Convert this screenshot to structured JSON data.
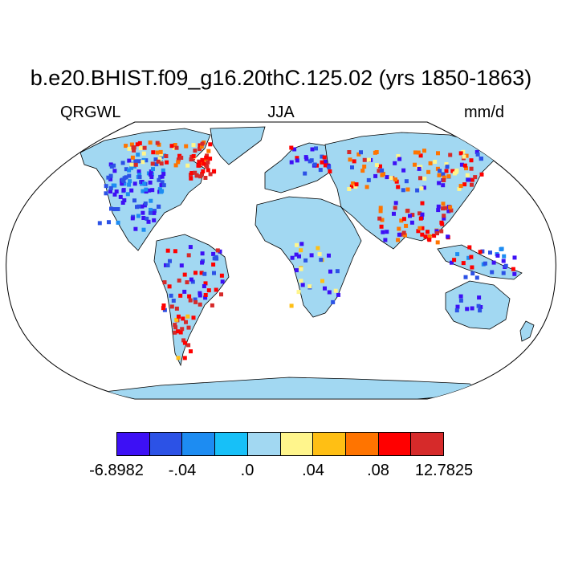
{
  "title": "b.e20.BHIST.f09_g16.20thC.125.02 (yrs 1850-1863)",
  "left_label": "QRGWL",
  "center_label": "JJA",
  "right_label": "mm/d",
  "colorbar": {
    "colors": [
      "#3d10f5",
      "#2c52e6",
      "#1d8cf2",
      "#17c0f8",
      "#a2d8f2",
      "#fff58c",
      "#ffbf14",
      "#ff7400",
      "#ff0000",
      "#d62a2a"
    ],
    "labels": [
      "-6.8982",
      "-.04",
      ".0",
      ".04",
      ".08",
      "12.7825"
    ]
  },
  "map_colors": {
    "land": "#a2d8f2",
    "ocean": "#ffffff",
    "coast": "#000000"
  }
}
